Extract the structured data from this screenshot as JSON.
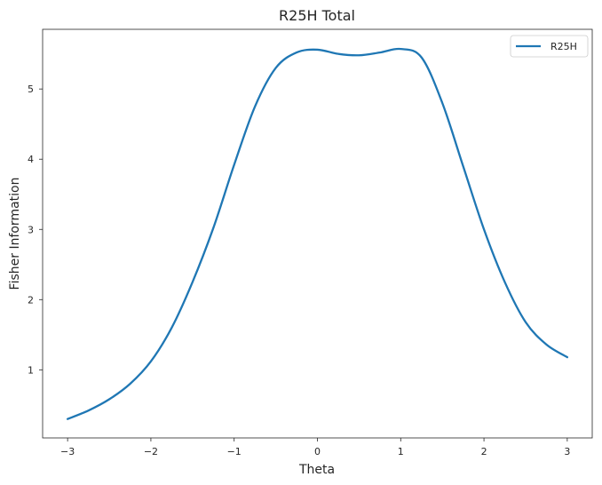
{
  "chart_data": {
    "type": "line",
    "title": "R25H Total",
    "xlabel": "Theta",
    "ylabel": "Fisher Information",
    "xlim": [
      -3.3,
      3.3
    ],
    "ylim": [
      0.03,
      5.85
    ],
    "xticks": [
      -3,
      -2,
      -1,
      0,
      1,
      2,
      3
    ],
    "xtick_labels": [
      "−3",
      "−2",
      "−1",
      "0",
      "1",
      "2",
      "3"
    ],
    "yticks": [
      1,
      2,
      3,
      4,
      5
    ],
    "ytick_labels": [
      "1",
      "2",
      "3",
      "4",
      "5"
    ],
    "grid": false,
    "legend": {
      "position": "top-right",
      "entries": [
        "R25H"
      ]
    },
    "series": [
      {
        "name": "R25H",
        "color": "#1f77b4",
        "x": [
          -3.0,
          -2.75,
          -2.5,
          -2.25,
          -2.0,
          -1.75,
          -1.5,
          -1.25,
          -1.0,
          -0.75,
          -0.5,
          -0.25,
          0.0,
          0.25,
          0.5,
          0.75,
          1.0,
          1.25,
          1.5,
          1.75,
          2.0,
          2.25,
          2.5,
          2.75,
          3.0
        ],
        "y": [
          0.3,
          0.42,
          0.58,
          0.8,
          1.12,
          1.6,
          2.25,
          3.02,
          3.92,
          4.75,
          5.3,
          5.52,
          5.56,
          5.5,
          5.48,
          5.52,
          5.57,
          5.45,
          4.8,
          3.9,
          3.0,
          2.25,
          1.68,
          1.36,
          1.18
        ]
      }
    ]
  }
}
